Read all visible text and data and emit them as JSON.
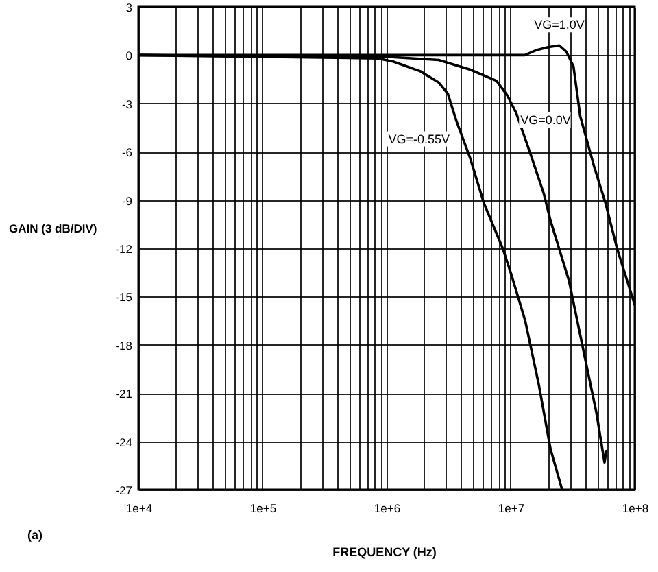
{
  "chart_data": {
    "type": "line",
    "xlabel": "FREQUENCY (Hz)",
    "ylabel": "GAIN (3 dB/DIV)",
    "annotations": [
      "(a)"
    ],
    "log": "x",
    "grid": true,
    "line_style": "solid",
    "xlim": [
      10000,
      100000000
    ],
    "ylim": [
      -27,
      3
    ],
    "xticks": [
      {
        "value": 10000,
        "label": "1e+4"
      },
      {
        "value": 20000,
        "label": null
      },
      {
        "value": 30000,
        "label": null
      },
      {
        "value": 40000,
        "label": null
      },
      {
        "value": 50000,
        "label": null
      },
      {
        "value": 60000,
        "label": null
      },
      {
        "value": 70000,
        "label": null
      },
      {
        "value": 80000,
        "label": null
      },
      {
        "value": 90000,
        "label": null
      },
      {
        "value": 100000,
        "label": "1e+5"
      },
      {
        "value": 200000,
        "label": null
      },
      {
        "value": 300000,
        "label": null
      },
      {
        "value": 400000,
        "label": null
      },
      {
        "value": 500000,
        "label": null
      },
      {
        "value": 600000,
        "label": null
      },
      {
        "value": 700000,
        "label": null
      },
      {
        "value": 800000,
        "label": null
      },
      {
        "value": 900000,
        "label": null
      },
      {
        "value": 1000000,
        "label": "1e+6"
      },
      {
        "value": 2000000,
        "label": null
      },
      {
        "value": 3000000,
        "label": null
      },
      {
        "value": 4000000,
        "label": null
      },
      {
        "value": 5000000,
        "label": null
      },
      {
        "value": 6000000,
        "label": null
      },
      {
        "value": 7000000,
        "label": null
      },
      {
        "value": 8000000,
        "label": null
      },
      {
        "value": 9000000,
        "label": null
      },
      {
        "value": 10000000,
        "label": "1e+7"
      },
      {
        "value": 20000000,
        "label": null
      },
      {
        "value": 30000000,
        "label": null
      },
      {
        "value": 40000000,
        "label": null
      },
      {
        "value": 50000000,
        "label": null
      },
      {
        "value": 60000000,
        "label": null
      },
      {
        "value": 70000000,
        "label": null
      },
      {
        "value": 80000000,
        "label": null
      },
      {
        "value": 90000000,
        "label": null
      },
      {
        "value": 100000000,
        "label": "1e+8"
      }
    ],
    "yticks": [
      -27,
      -24,
      -21,
      -18,
      -15,
      -12,
      -9,
      -6,
      -3,
      0,
      3
    ],
    "series": [
      {
        "name": "VG=1.0V",
        "color": "#000000",
        "x": [
          10000,
          10000000,
          13000000,
          16000000,
          20000000,
          24700000,
          28200000,
          32100000,
          36400000,
          47000000,
          58200000,
          72000000,
          100000000
        ],
        "values": [
          0,
          0,
          0,
          0.3,
          0.5,
          0.6,
          0.2,
          -0.7,
          -3.8,
          -6.9,
          -9.2,
          -12.0,
          -15.5
        ]
      },
      {
        "name": "VG=0.0V",
        "color": "#000000",
        "x": [
          10000,
          1000000,
          2630000,
          4720000,
          7700000,
          9400000,
          11100000,
          14400000,
          18500000,
          21000000,
          29500000,
          39700000,
          49100000,
          57100000,
          59000000
        ],
        "values": [
          0,
          -0.1,
          -0.3,
          -0.9,
          -1.6,
          -2.5,
          -3.6,
          -6.1,
          -8.6,
          -10.3,
          -14.0,
          -18.8,
          -22.2,
          -25.3,
          -24.6
        ]
      },
      {
        "name": "VG=-0.55V",
        "color": "#000000",
        "x": [
          10000,
          840000,
          1130000,
          1870000,
          2630000,
          3120000,
          3660000,
          4720000,
          6090000,
          8630000,
          10200000,
          13100000,
          16900000,
          21000000,
          26000000
        ],
        "values": [
          0,
          -0.2,
          -0.4,
          -1.0,
          -1.7,
          -2.4,
          -4.1,
          -6.4,
          -9.2,
          -12.0,
          -13.7,
          -16.5,
          -20.5,
          -24.5,
          -27
        ]
      }
    ]
  }
}
